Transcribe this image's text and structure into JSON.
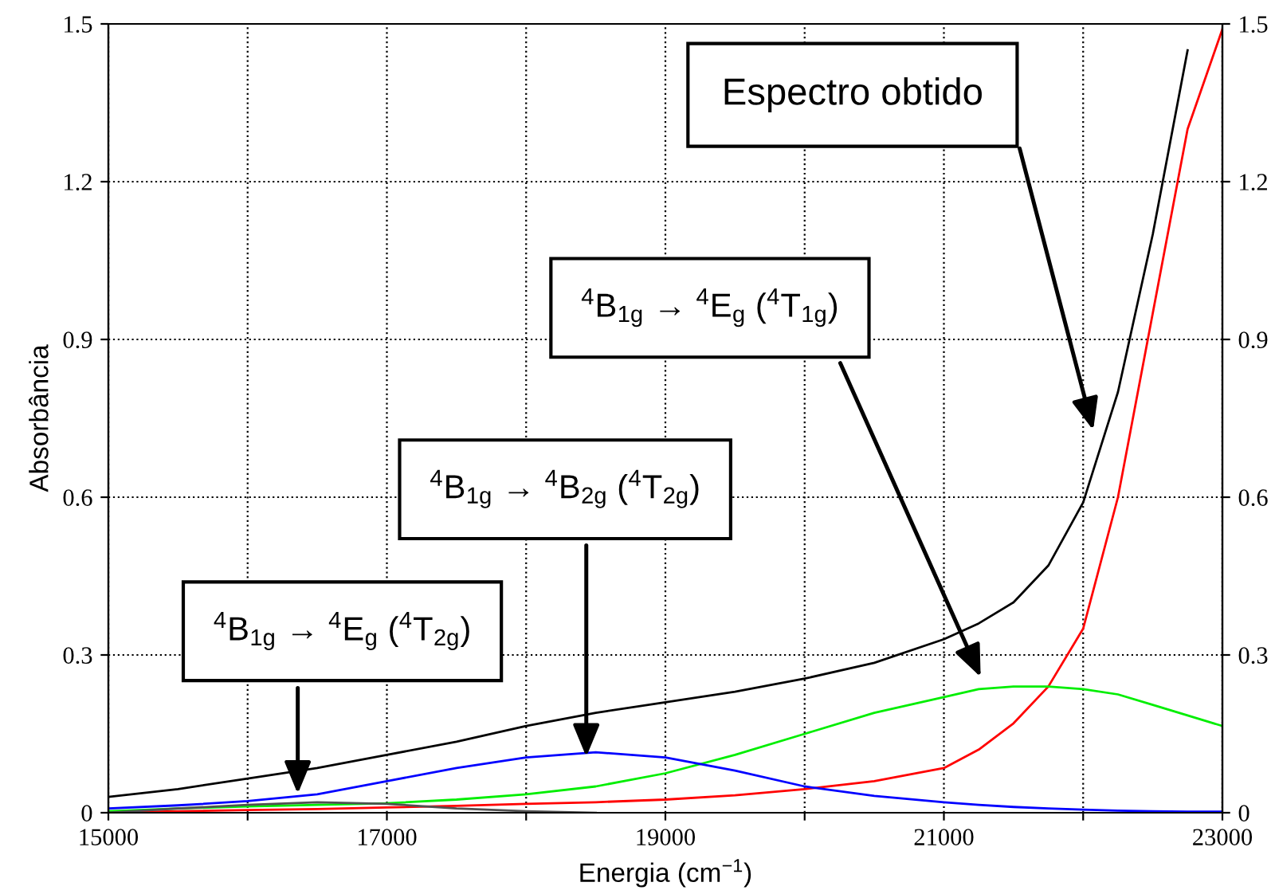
{
  "chart_data": {
    "type": "line",
    "xlabel": "Energia (cm$^{−1}$)",
    "ylabel": "Absorbância",
    "x": [
      15000,
      15500,
      16000,
      16500,
      17000,
      17500,
      18000,
      18500,
      19000,
      19500,
      20000,
      20500,
      21000,
      21250,
      21500,
      21750,
      22000,
      22250,
      22500,
      22750,
      23000
    ],
    "series": [
      {
        "color": "#000000",
        "values": [
          0.03,
          0.045,
          0.065,
          0.085,
          0.11,
          0.135,
          0.165,
          0.19,
          0.21,
          0.23,
          0.255,
          0.285,
          0.33,
          0.36,
          0.4,
          0.47,
          0.59,
          0.8,
          1.1,
          1.45,
          null
        ]
      },
      {
        "color": "#ff0000",
        "values": [
          0.0,
          0.003,
          0.005,
          0.007,
          0.01,
          0.013,
          0.017,
          0.02,
          0.025,
          0.033,
          0.045,
          0.06,
          0.085,
          0.12,
          0.17,
          0.24,
          0.35,
          0.6,
          0.95,
          1.3,
          1.49
        ]
      },
      {
        "color": "#00ee00",
        "values": [
          0.003,
          0.008,
          0.012,
          0.015,
          0.018,
          0.025,
          0.035,
          0.05,
          0.075,
          0.11,
          0.15,
          0.19,
          0.22,
          0.235,
          0.24,
          0.24,
          0.235,
          0.225,
          0.205,
          0.185,
          0.165
        ]
      },
      {
        "color": "#0000ff",
        "values": [
          0.008,
          0.014,
          0.022,
          0.035,
          0.06,
          0.085,
          0.105,
          0.115,
          0.105,
          0.08,
          0.05,
          0.032,
          0.02,
          0.015,
          0.011,
          0.008,
          0.006,
          0.004,
          0.003,
          0.002,
          0.002
        ]
      },
      {
        "color": "#505050",
        "values": [
          0.0,
          0.008,
          0.015,
          0.02,
          0.017,
          0.008,
          0.003,
          0.0,
          null,
          null,
          null,
          null,
          null,
          null,
          null,
          null,
          null,
          null,
          null,
          null,
          null
        ]
      }
    ],
    "xlim": [
      15000,
      23000
    ],
    "xticks": [
      15000,
      {
        "value": 16000,
        "label": null
      },
      17000,
      {
        "value": 18000,
        "label": null
      },
      19000,
      {
        "value": 20000,
        "label": null
      },
      21000,
      {
        "value": 22000,
        "label": null
      },
      23000
    ],
    "ylim": [
      0,
      1.5
    ],
    "yticks": [
      0,
      0.3,
      0.6,
      0.9,
      1.2,
      1.5
    ],
    "y2lim": [
      0,
      1.5
    ],
    "y2ticks": [
      0,
      0.3,
      0.6,
      0.9,
      1.2,
      1.5
    ],
    "grid": true,
    "line_style": "solid",
    "legend": false,
    "annotations": [
      "Espectro obtido",
      "$^{4}$B$_{1g}$ → $^{4}$E$_{g}$ ($^{4}$T$_{1g}$)",
      "$^{4}$B$_{1g}$ → $^{4}$B$_{2g}$ ($^{4}$T$_{2g}$)",
      "$^{4}$B$_{1g}$ → $^{4}$E$_{g}$ ($^{4}$T$_{2g}$)"
    ]
  }
}
